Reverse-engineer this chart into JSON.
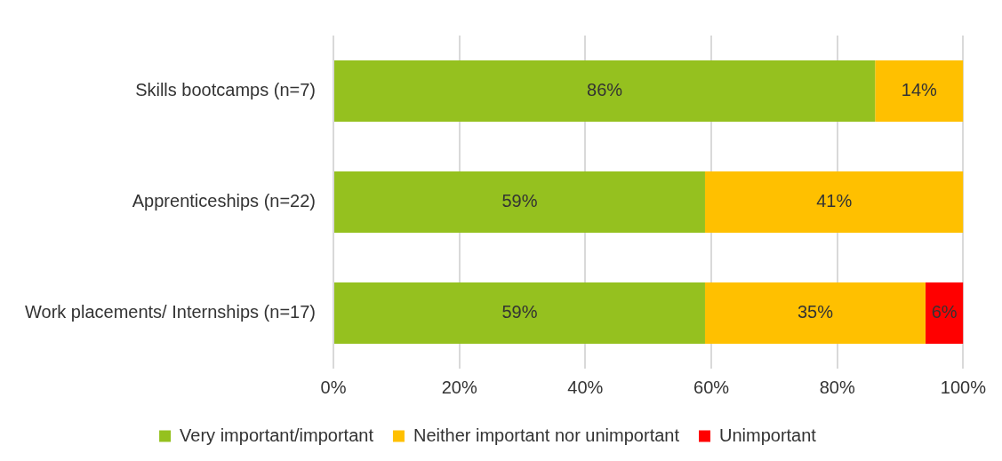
{
  "chart_data": {
    "type": "bar",
    "orientation": "horizontal",
    "stacked": true,
    "categories": [
      "Skills bootcamps (n=7)",
      "Apprenticeships (n=22)",
      "Work placements/ Internships (n=17)"
    ],
    "series": [
      {
        "name": "Very important/important",
        "color": "#95c11f",
        "values": [
          86,
          59,
          59
        ],
        "value_labels": [
          "86%",
          "59%",
          "59%"
        ]
      },
      {
        "name": "Neither important nor unimportant",
        "color": "#ffc000",
        "values": [
          14,
          41,
          35
        ],
        "value_labels": [
          "14%",
          "41%",
          "35%"
        ]
      },
      {
        "name": "Unimportant",
        "color": "#ff0000",
        "values": [
          null,
          null,
          6
        ],
        "value_labels": [
          null,
          null,
          "6%"
        ]
      }
    ],
    "xlim": [
      0,
      100
    ],
    "xticks": [
      {
        "value": 0,
        "label": "0%"
      },
      {
        "value": 20,
        "label": "20%"
      },
      {
        "value": 40,
        "label": "40%"
      },
      {
        "value": 60,
        "label": "60%"
      },
      {
        "value": 80,
        "label": "80%"
      },
      {
        "value": 100,
        "label": "100%"
      }
    ],
    "grid": "x",
    "legend": "bottom"
  }
}
